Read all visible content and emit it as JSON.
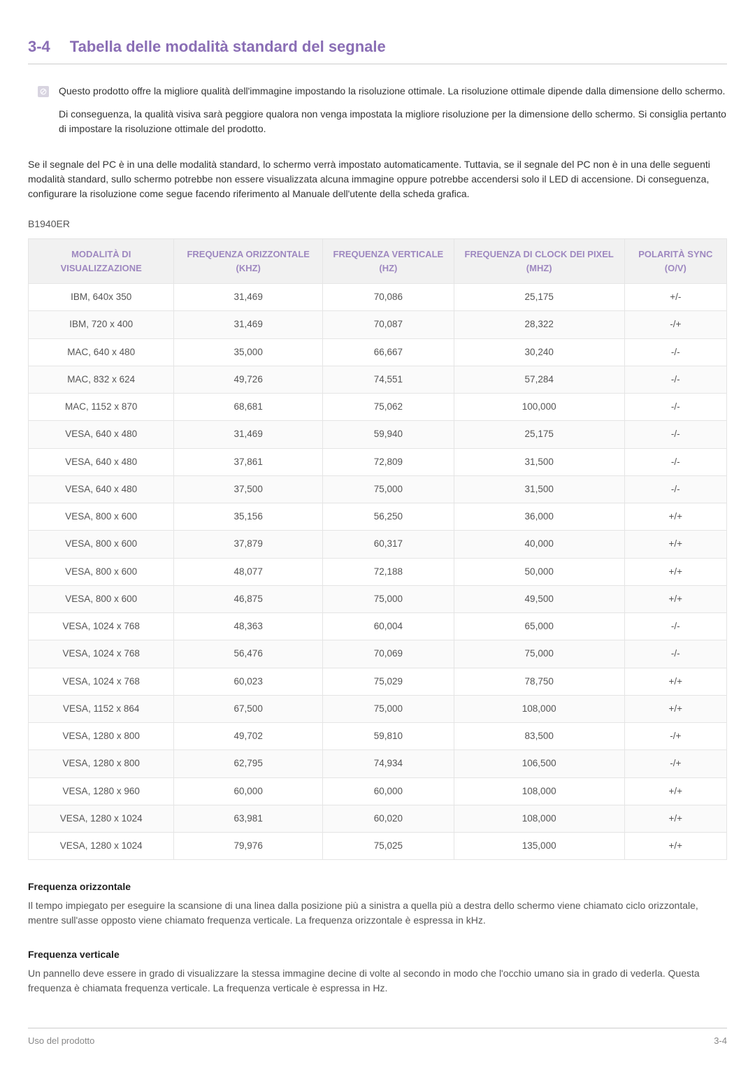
{
  "colors": {
    "heading": "#8a6eb5",
    "table_header_bg": "#f1f1f1",
    "table_header_fg": "#9e88c0",
    "border": "#e5e5e5",
    "text": "#555555",
    "footer": "#888888"
  },
  "section": {
    "number": "3-4",
    "title": "Tabella delle modalità standard del segnale"
  },
  "note": {
    "para1": "Questo prodotto offre la migliore qualità dell'immagine impostando la risoluzione ottimale. La risoluzione ottimale dipende dalla dimensione dello schermo.",
    "para2": "Di conseguenza, la qualità visiva sarà peggiore qualora non venga impostata la migliore risoluzione per la dimensione dello schermo. Si consiglia pertanto di impostare la risoluzione ottimale del prodotto."
  },
  "body_para": "Se il segnale del PC è in una delle modalità standard, lo schermo verrà impostato automaticamente. Tuttavia, se il segnale del PC non è in una delle seguenti modalità standard, sullo schermo potrebbe non essere visualizzata alcuna immagine oppure potrebbe accendersi solo il LED di accensione. Di conseguenza, configurare la risoluzione come segue facendo riferimento al Manuale dell'utente della scheda grafica.",
  "model": "B1940ER",
  "table": {
    "columns": [
      "MODALITÀ DI VISUALIZZAZIONE",
      "FREQUENZA ORIZZONTALE (KHZ)",
      "FREQUENZA VERTICALE (HZ)",
      "FREQUENZA DI CLOCK DEI PIXEL (MHZ)",
      "POLARITÀ SYNC (O/V)"
    ],
    "rows": [
      [
        "IBM, 640x 350",
        "31,469",
        "70,086",
        "25,175",
        "+/-"
      ],
      [
        "IBM, 720 x 400",
        "31,469",
        "70,087",
        "28,322",
        "-/+"
      ],
      [
        "MAC, 640 x 480",
        "35,000",
        "66,667",
        "30,240",
        "-/-"
      ],
      [
        "MAC, 832 x 624",
        "49,726",
        "74,551",
        "57,284",
        "-/-"
      ],
      [
        "MAC, 1152 x 870",
        "68,681",
        "75,062",
        "100,000",
        "-/-"
      ],
      [
        "VESA, 640 x 480",
        "31,469",
        "59,940",
        "25,175",
        "-/-"
      ],
      [
        "VESA, 640 x 480",
        "37,861",
        "72,809",
        "31,500",
        "-/-"
      ],
      [
        "VESA, 640 x 480",
        "37,500",
        "75,000",
        "31,500",
        "-/-"
      ],
      [
        "VESA, 800 x 600",
        "35,156",
        "56,250",
        "36,000",
        "+/+"
      ],
      [
        "VESA, 800 x 600",
        "37,879",
        "60,317",
        "40,000",
        "+/+"
      ],
      [
        "VESA, 800 x 600",
        "48,077",
        "72,188",
        "50,000",
        "+/+"
      ],
      [
        "VESA, 800 x 600",
        "46,875",
        "75,000",
        "49,500",
        "+/+"
      ],
      [
        "VESA, 1024 x 768",
        "48,363",
        "60,004",
        "65,000",
        "-/-"
      ],
      [
        "VESA, 1024 x 768",
        "56,476",
        "70,069",
        "75,000",
        "-/-"
      ],
      [
        "VESA, 1024 x 768",
        "60,023",
        "75,029",
        "78,750",
        "+/+"
      ],
      [
        "VESA, 1152 x 864",
        "67,500",
        "75,000",
        "108,000",
        "+/+"
      ],
      [
        "VESA, 1280 x 800",
        "49,702",
        "59,810",
        "83,500",
        "-/+"
      ],
      [
        "VESA, 1280 x 800",
        "62,795",
        "74,934",
        "106,500",
        "-/+"
      ],
      [
        "VESA, 1280 x 960",
        "60,000",
        "60,000",
        "108,000",
        "+/+"
      ],
      [
        "VESA, 1280 x 1024",
        "63,981",
        "60,020",
        "108,000",
        "+/+"
      ],
      [
        "VESA, 1280 x 1024",
        "79,976",
        "75,025",
        "135,000",
        "+/+"
      ]
    ]
  },
  "defs": {
    "h1": "Frequenza orizzontale",
    "p1": "Il tempo impiegato per eseguire la scansione di una linea dalla posizione più a sinistra a quella più a destra dello schermo viene chiamato ciclo orizzontale, mentre sull'asse opposto viene chiamato frequenza verticale. La frequenza orizzontale è espressa in kHz.",
    "h2": "Frequenza verticale",
    "p2": "Un pannello deve essere in grado di visualizzare la stessa immagine decine di volte al secondo in modo che l'occhio umano sia in grado di vederla. Questa frequenza è chiamata frequenza verticale. La frequenza verticale è espressa in Hz."
  },
  "footer": {
    "left": "Uso del prodotto",
    "right": "3-4"
  }
}
